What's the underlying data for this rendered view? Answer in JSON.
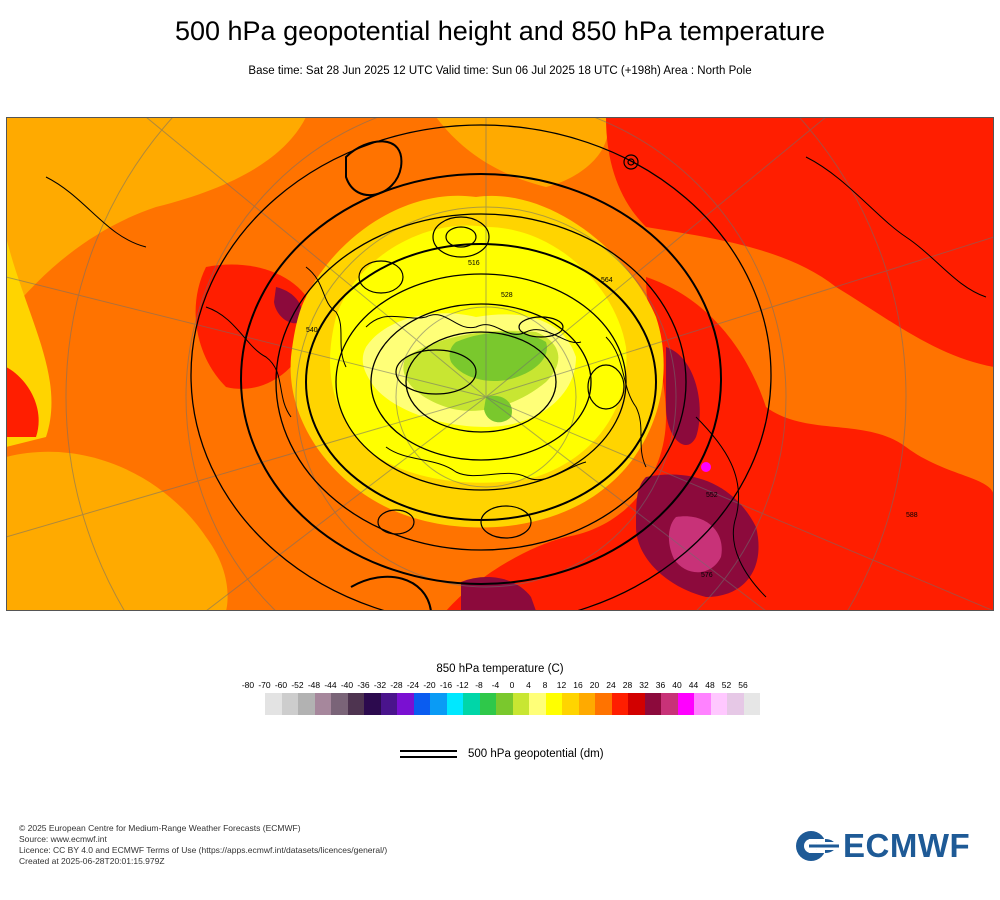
{
  "header": {
    "title": "500 hPa geopotential height and 850 hPa temperature",
    "subtitle": "Base time: Sat 28 Jun 2025 12 UTC Valid time: Sun 06 Jul 2025 18 UTC (+198h) Area : North Pole"
  },
  "map": {
    "projection": "polar stereographic",
    "area": "North Pole",
    "contour_labels": [
      "516",
      "528",
      "540",
      "552",
      "564",
      "576",
      "588"
    ]
  },
  "legend": {
    "title": "850 hPa temperature (C)",
    "ticks": [
      "-80",
      "-70",
      "-60",
      "-52",
      "-48",
      "-44",
      "-40",
      "-36",
      "-32",
      "-28",
      "-24",
      "-20",
      "-16",
      "-12",
      "-8",
      "-4",
      "0",
      "4",
      "8",
      "12",
      "16",
      "20",
      "24",
      "28",
      "32",
      "36",
      "40",
      "44",
      "48",
      "52",
      "56"
    ],
    "colors": [
      "#e3e3e3",
      "#cdcdcd",
      "#b2b2b2",
      "#a6879c",
      "#7a6478",
      "#4e3450",
      "#2c0a4e",
      "#4a148c",
      "#7a10d2",
      "#0a5cf0",
      "#0a9bf5",
      "#00e8ff",
      "#00d6a8",
      "#2fc84a",
      "#7ac82d",
      "#c8e632",
      "#ffff78",
      "#ffff00",
      "#ffd400",
      "#ffaa00",
      "#ff7300",
      "#ff1e00",
      "#d20000",
      "#8c0a3c",
      "#c83278",
      "#ff00ff",
      "#ff82ff",
      "#ffc8ff",
      "#e6c8e6",
      "#e6e6e6"
    ]
  },
  "line_legend": {
    "label": "500 hPa geopotential (dm)"
  },
  "credits": {
    "line1": "© 2025 European Centre for Medium-Range Weather Forecasts (ECMWF)",
    "line2": "Source: www.ecmwf.int",
    "line3": "Licence: CC BY 4.0 and ECMWF Terms of Use (https://apps.ecmwf.int/datasets/licences/general/)",
    "line4": "Created at 2025-06-28T20:01:15.979Z"
  },
  "logo": {
    "text": "ECMWF",
    "color": "#1e5a96"
  }
}
